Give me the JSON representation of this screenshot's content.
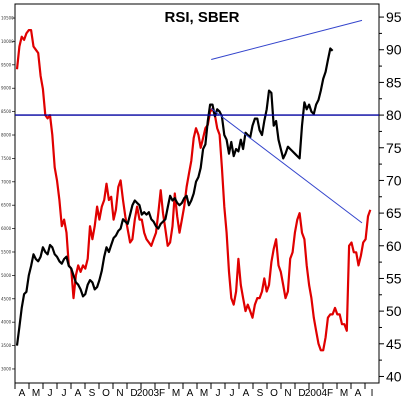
{
  "chart_data": {
    "type": "line",
    "title": "RSI, SBER",
    "right_axis": {
      "ticks": [
        "95",
        "90",
        "85",
        "80",
        "75",
        "70",
        "65",
        "60",
        "55",
        "50",
        "45",
        "40"
      ],
      "ylim": [
        39,
        97
      ]
    },
    "left_axis": {
      "ticks": [
        "10500",
        "10000",
        "9500",
        "9000",
        "8500",
        "8000",
        "7500",
        "7000",
        "6500",
        "6000",
        "5500",
        "5000",
        "4500",
        "4000",
        "3500",
        "3000"
      ],
      "ylim": [
        2700,
        10800
      ]
    },
    "x_ticks": [
      "A",
      "M",
      "J",
      "J",
      "A",
      "S",
      "O",
      "N",
      "D",
      "2003",
      "F",
      "M",
      "A",
      "M",
      "J",
      "J",
      "A",
      "S",
      "O",
      "N",
      "D",
      "2004",
      "F",
      "M",
      "A",
      "I"
    ],
    "series": [
      {
        "color": "#e00000",
        "axis": "right",
        "values": [
          87,
          90.5,
          92,
          91.5,
          92.5,
          93,
          93,
          90.5,
          90,
          89.5,
          86,
          84,
          80,
          79.5,
          80,
          77,
          72,
          70,
          67,
          63,
          64,
          62,
          57,
          56.5,
          52,
          55.5,
          57,
          56,
          57,
          56.5,
          58,
          63,
          61,
          63,
          66,
          64,
          66,
          67,
          69.5,
          67,
          67.5,
          64,
          65.5,
          69,
          70,
          67,
          64.5,
          62.5,
          60.5,
          61,
          64,
          66,
          64,
          64,
          62,
          61,
          60.5,
          60,
          61,
          62,
          65,
          68.5,
          65,
          62.5,
          60,
          60.5,
          63,
          68,
          64.5,
          62,
          64,
          66,
          69,
          71,
          73,
          76.5,
          78,
          77,
          75,
          76.5,
          78,
          78.5,
          80.5,
          81,
          80,
          78,
          77,
          72,
          66,
          62,
          56,
          52,
          51,
          53,
          58,
          54,
          52,
          50,
          51,
          50,
          49,
          51,
          52,
          52,
          53,
          55,
          53,
          54,
          57.5,
          59.5,
          61,
          57,
          56,
          54,
          52,
          53,
          58,
          59,
          62,
          64,
          65,
          62,
          61,
          57,
          54,
          52,
          49,
          47,
          45,
          44,
          44,
          46,
          49,
          49.5,
          49.5,
          50.5,
          49.5,
          49.5,
          48,
          48,
          47,
          60,
          60.5,
          59,
          59,
          57,
          58.5,
          60.5,
          61,
          64.5,
          65.5
        ]
      },
      {
        "color": "#000000",
        "axis": "left",
        "values": [
          3500,
          3900,
          4300,
          4600,
          4650,
          5000,
          5200,
          5450,
          5350,
          5300,
          5400,
          5600,
          5500,
          5450,
          5650,
          5600,
          5450,
          5400,
          5300,
          5250,
          5350,
          5400,
          5200,
          5150,
          5000,
          4850,
          4800,
          4700,
          4550,
          4600,
          4800,
          4900,
          4850,
          4700,
          4750,
          4900,
          5100,
          5400,
          5600,
          5500,
          5650,
          5800,
          5850,
          5950,
          6000,
          6200,
          6150,
          6100,
          6300,
          6500,
          6600,
          6550,
          6500,
          6300,
          6350,
          6300,
          6350,
          6200,
          6150,
          6050,
          6000,
          6100,
          6150,
          6200,
          6450,
          6700,
          6600,
          6650,
          6550,
          6500,
          6550,
          6650,
          6700,
          6500,
          6600,
          6750,
          7000,
          7100,
          7300,
          7700,
          7800,
          8300,
          8650,
          8650,
          8400,
          8550,
          8500,
          8400,
          8000,
          7900,
          7600,
          7850,
          7550,
          7700,
          7650,
          7900,
          7700,
          8050,
          8000,
          7950,
          8200,
          8350,
          8350,
          8100,
          8000,
          8300,
          8550,
          8950,
          8900,
          8200,
          8300,
          7900,
          7700,
          7500,
          7600,
          7750,
          7700,
          7650,
          7600,
          7550,
          7500,
          8200,
          8700,
          8550,
          8650,
          8500,
          8450,
          8650,
          8750,
          8950,
          9200,
          9350,
          9600,
          9850,
          9800
        ]
      }
    ],
    "reference_lines": {
      "horizontal_value_right_axis": 80,
      "trend_upper": {
        "from_right_value": 88.5,
        "to_right_value": 94.5
      },
      "trend_lower": {
        "from_right_value": 81,
        "to_right_value": 63.5
      }
    }
  }
}
